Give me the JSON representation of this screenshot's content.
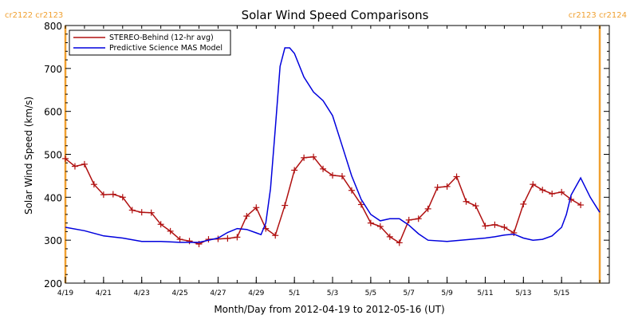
{
  "chart_data": {
    "type": "line",
    "title": "Solar Wind Speed Comparisons",
    "xlabel": "Month/Day from 2012-04-19 to 2012-05-16 (UT)",
    "ylabel": "Solar Wind Speed (km/s)",
    "ylim": [
      200,
      800
    ],
    "xlim": [
      "2012-04-19",
      "2012-05-17 12:00"
    ],
    "x_ticks": [
      "4/19",
      "4/21",
      "4/23",
      "4/25",
      "4/27",
      "4/29",
      "5/1",
      "5/3",
      "5/5",
      "5/7",
      "5/9",
      "5/11",
      "5/13",
      "5/15"
    ],
    "y_ticks": [
      200,
      300,
      400,
      500,
      600,
      700,
      800
    ],
    "grid": false,
    "legend_position": "top-left",
    "carrington_labels": {
      "left": "cr2122 cr2123",
      "right": "cr2123 cr2124",
      "color": "#f0a030"
    },
    "carrington_markers": [
      "2012-04-19",
      "2012-05-17"
    ],
    "series": [
      {
        "name": "STEREO-Behind (12-hr avg)",
        "color": "#b01010",
        "marker": "plus",
        "x": [
          "2012-04-19 00:00",
          "2012-04-19 12:00",
          "2012-04-20 00:00",
          "2012-04-20 12:00",
          "2012-04-21 00:00",
          "2012-04-21 12:00",
          "2012-04-22 00:00",
          "2012-04-22 12:00",
          "2012-04-23 00:00",
          "2012-04-23 12:00",
          "2012-04-24 00:00",
          "2012-04-24 12:00",
          "2012-04-25 00:00",
          "2012-04-25 12:00",
          "2012-04-26 00:00",
          "2012-04-26 12:00",
          "2012-04-27 00:00",
          "2012-04-27 12:00",
          "2012-04-28 00:00",
          "2012-04-28 12:00",
          "2012-04-29 00:00",
          "2012-04-29 12:00",
          "2012-04-30 00:00",
          "2012-04-30 12:00",
          "2012-05-01 00:00",
          "2012-05-01 12:00",
          "2012-05-02 00:00",
          "2012-05-02 12:00",
          "2012-05-03 00:00",
          "2012-05-03 12:00",
          "2012-05-04 00:00",
          "2012-05-04 12:00",
          "2012-05-05 00:00",
          "2012-05-05 12:00",
          "2012-05-06 00:00",
          "2012-05-06 12:00",
          "2012-05-07 00:00",
          "2012-05-07 12:00",
          "2012-05-08 00:00",
          "2012-05-08 12:00",
          "2012-05-09 00:00",
          "2012-05-09 12:00",
          "2012-05-10 00:00",
          "2012-05-10 12:00",
          "2012-05-11 00:00",
          "2012-05-11 12:00",
          "2012-05-12 00:00",
          "2012-05-12 12:00",
          "2012-05-13 00:00",
          "2012-05-13 12:00",
          "2012-05-14 00:00",
          "2012-05-14 12:00",
          "2012-05-15 00:00",
          "2012-05-15 12:00",
          "2012-05-16 00:00"
        ],
        "y": [
          490,
          472,
          477,
          430,
          406,
          407,
          400,
          370,
          365,
          364,
          337,
          321,
          302,
          298,
          291,
          302,
          303,
          304,
          307,
          356,
          376,
          327,
          311,
          381,
          463,
          492,
          494,
          466,
          451,
          449,
          416,
          383,
          340,
          332,
          308,
          294,
          347,
          350,
          373,
          423,
          425,
          448,
          390,
          380,
          333,
          336,
          330,
          317,
          384,
          430,
          417,
          408,
          412,
          395,
          382
        ]
      },
      {
        "name": "Predictive Science MAS Model",
        "color": "#0000dd",
        "marker": "none",
        "x": [
          "2012-04-19 00:00",
          "2012-04-20 00:00",
          "2012-04-21 00:00",
          "2012-04-22 00:00",
          "2012-04-23 00:00",
          "2012-04-24 00:00",
          "2012-04-25 00:00",
          "2012-04-26 00:00",
          "2012-04-27 00:00",
          "2012-04-27 12:00",
          "2012-04-28 00:00",
          "2012-04-28 12:00",
          "2012-04-29 00:00",
          "2012-04-29 06:00",
          "2012-04-29 12:00",
          "2012-04-29 18:00",
          "2012-04-30 00:00",
          "2012-04-30 06:00",
          "2012-04-30 12:00",
          "2012-04-30 18:00",
          "2012-05-01 00:00",
          "2012-05-01 12:00",
          "2012-05-02 00:00",
          "2012-05-02 12:00",
          "2012-05-03 00:00",
          "2012-05-03 12:00",
          "2012-05-04 00:00",
          "2012-05-04 12:00",
          "2012-05-05 00:00",
          "2012-05-05 12:00",
          "2012-05-06 00:00",
          "2012-05-06 12:00",
          "2012-05-07 00:00",
          "2012-05-07 12:00",
          "2012-05-08 00:00",
          "2012-05-09 00:00",
          "2012-05-10 00:00",
          "2012-05-11 00:00",
          "2012-05-11 12:00",
          "2012-05-12 00:00",
          "2012-05-12 12:00",
          "2012-05-13 00:00",
          "2012-05-13 12:00",
          "2012-05-14 00:00",
          "2012-05-14 12:00",
          "2012-05-15 00:00",
          "2012-05-15 06:00",
          "2012-05-15 12:00",
          "2012-05-16 00:00",
          "2012-05-16 12:00",
          "2012-05-17 00:00"
        ],
        "y": [
          330,
          322,
          310,
          305,
          297,
          297,
          295,
          295,
          305,
          318,
          327,
          325,
          317,
          313,
          340,
          420,
          560,
          705,
          748,
          748,
          735,
          680,
          645,
          625,
          590,
          520,
          450,
          395,
          360,
          345,
          350,
          350,
          335,
          315,
          300,
          297,
          301,
          305,
          308,
          312,
          314,
          305,
          300,
          302,
          310,
          330,
          360,
          405,
          445,
          400,
          365
        ]
      }
    ]
  }
}
